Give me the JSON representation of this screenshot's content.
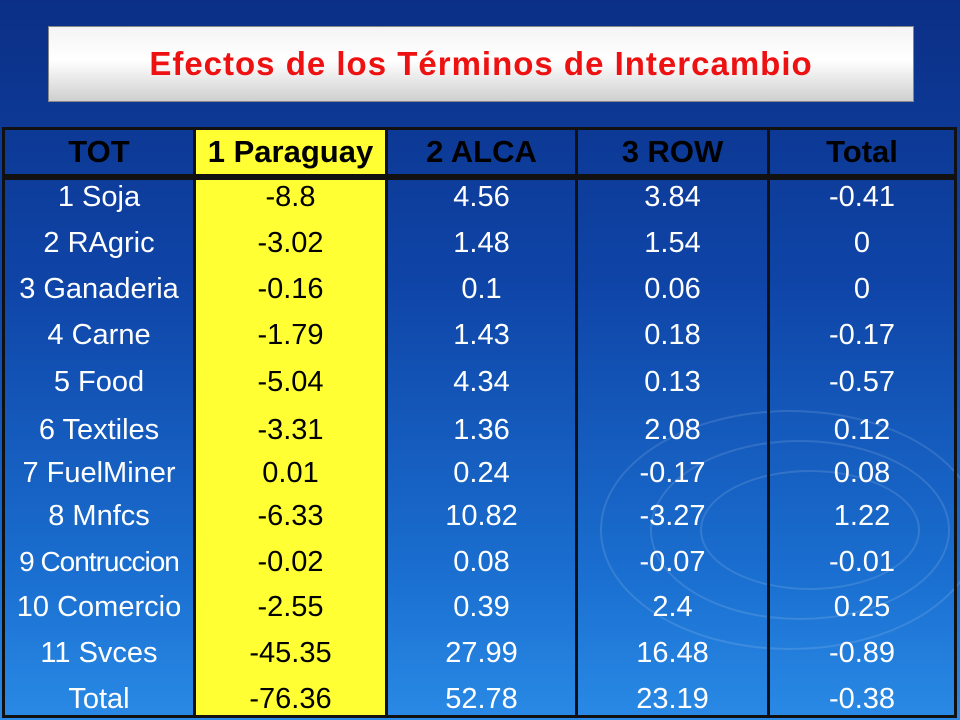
{
  "title": "Efectos de los Términos de Intercambio",
  "table": {
    "headers": [
      "TOT",
      "1 Paraguay",
      "2 ALCA",
      "3 ROW",
      "Total"
    ],
    "rows": [
      [
        "1 Soja",
        "-8.8",
        "4.56",
        "3.84",
        "-0.41"
      ],
      [
        "2 RAgric",
        "-3.02",
        "1.48",
        "1.54",
        "0"
      ],
      [
        "3 Ganaderia",
        "-0.16",
        "0.1",
        "0.06",
        "0"
      ],
      [
        "4 Carne",
        "-1.79",
        "1.43",
        "0.18",
        "-0.17"
      ],
      [
        "5 Food",
        "-5.04",
        "4.34",
        "0.13",
        "-0.57"
      ],
      [
        "6 Textiles",
        "-3.31",
        "1.36",
        "2.08",
        "0.12"
      ],
      [
        "7 FuelMiner",
        "0.01",
        "0.24",
        "-0.17",
        "0.08"
      ],
      [
        "8 Mnfcs",
        "-6.33",
        "10.82",
        "-3.27",
        "1.22"
      ],
      [
        "9 Contruccion",
        "-0.02",
        "0.08",
        "-0.07",
        "-0.01"
      ],
      [
        "10 Comercio",
        "-2.55",
        "0.39",
        "2.4",
        "0.25"
      ],
      [
        "11 Svces",
        "-45.35",
        "27.99",
        "16.48",
        "-0.89"
      ],
      [
        "Total",
        "-76.36",
        "52.78",
        "23.19",
        "-0.38"
      ]
    ]
  },
  "colors": {
    "title": "#ee1111",
    "highlight_column": "#ffff33",
    "background": "#0f45a8"
  }
}
